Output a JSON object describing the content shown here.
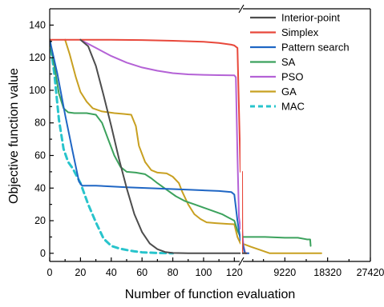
{
  "chart_data": {
    "type": "line",
    "xlabel": "Number of function evaluation",
    "ylabel": "Objective function value",
    "ylim": [
      -5,
      150
    ],
    "grid": false,
    "legend_position": "top-right",
    "x_axis": {
      "broken": true,
      "left_segment": {
        "range": [
          0,
          124
        ],
        "ticks": [
          0,
          20,
          40,
          60,
          80,
          100,
          120
        ]
      },
      "right_segment": {
        "range": [
          120,
          27420
        ],
        "ticks": [
          9220,
          18320,
          27420
        ]
      }
    },
    "y_ticks": [
      0,
      20,
      40,
      60,
      80,
      100,
      120,
      140
    ],
    "series": [
      {
        "name": "Interior-point",
        "color": "#4d4d4d",
        "dashed": false,
        "points_left": [
          [
            20,
            131
          ],
          [
            25,
            127
          ],
          [
            30,
            115
          ],
          [
            35,
            97
          ],
          [
            40,
            78
          ],
          [
            45,
            58
          ],
          [
            50,
            40
          ],
          [
            55,
            24
          ],
          [
            60,
            13
          ],
          [
            65,
            6
          ],
          [
            70,
            2.5
          ],
          [
            75,
            0.8
          ],
          [
            80,
            0.2
          ],
          [
            90,
            0
          ],
          [
            124,
            0
          ]
        ],
        "points_right": [
          [
            120,
            0
          ],
          [
            1000,
            0
          ]
        ]
      },
      {
        "name": "Simplex",
        "color": "#e8483b",
        "dashed": false,
        "points_left": [
          [
            0,
            131
          ],
          [
            20,
            131
          ],
          [
            40,
            131
          ],
          [
            60,
            130.8
          ],
          [
            80,
            130.4
          ],
          [
            100,
            129.8
          ],
          [
            110,
            129
          ],
          [
            118,
            128
          ],
          [
            120,
            127.5
          ],
          [
            122,
            126
          ],
          [
            124,
            50
          ]
        ],
        "points_right": [
          [
            120,
            50
          ],
          [
            170,
            0
          ],
          [
            300,
            0
          ],
          [
            1000,
            0
          ]
        ]
      },
      {
        "name": "Pattern search",
        "color": "#1f66c4",
        "dashed": false,
        "points_left": [
          [
            0,
            131
          ],
          [
            5,
            110
          ],
          [
            10,
            85
          ],
          [
            15,
            62
          ],
          [
            19,
            44
          ],
          [
            21,
            41.5
          ],
          [
            30,
            41.5
          ],
          [
            50,
            40.5
          ],
          [
            70,
            39.8
          ],
          [
            90,
            39
          ],
          [
            110,
            38.2
          ],
          [
            118,
            37.6
          ],
          [
            120,
            36
          ],
          [
            122,
            20
          ],
          [
            124,
            8
          ]
        ],
        "points_right": [
          [
            120,
            8
          ],
          [
            300,
            5
          ],
          [
            700,
            0
          ],
          [
            1500,
            0
          ]
        ]
      },
      {
        "name": "SA",
        "color": "#3ca25d",
        "dashed": false,
        "points_left": [
          [
            0,
            131
          ],
          [
            3,
            115
          ],
          [
            6,
            98
          ],
          [
            9,
            89
          ],
          [
            12,
            86.5
          ],
          [
            16,
            86
          ],
          [
            24,
            86
          ],
          [
            30,
            85
          ],
          [
            34,
            80
          ],
          [
            38,
            70
          ],
          [
            42,
            60
          ],
          [
            46,
            53
          ],
          [
            50,
            50
          ],
          [
            56,
            49.5
          ],
          [
            62,
            48.5
          ],
          [
            66,
            46
          ],
          [
            70,
            43
          ],
          [
            76,
            39
          ],
          [
            82,
            35
          ],
          [
            88,
            32
          ],
          [
            94,
            30
          ],
          [
            100,
            28
          ],
          [
            106,
            26
          ],
          [
            112,
            24
          ],
          [
            116,
            22
          ],
          [
            118,
            21
          ],
          [
            120,
            20
          ],
          [
            122,
            14
          ],
          [
            124,
            10
          ]
        ],
        "points_right": [
          [
            120,
            10
          ],
          [
            5000,
            10
          ],
          [
            9220,
            9.5
          ],
          [
            12000,
            9.5
          ],
          [
            14000,
            8.5
          ],
          [
            14600,
            8.5
          ],
          [
            14700,
            4.5
          ]
        ]
      },
      {
        "name": "PSO",
        "color": "#b462d6",
        "dashed": false,
        "points_left": [
          [
            20,
            131
          ],
          [
            30,
            126
          ],
          [
            40,
            121
          ],
          [
            50,
            117
          ],
          [
            60,
            114
          ],
          [
            70,
            112
          ],
          [
            80,
            110.5
          ],
          [
            90,
            109.8
          ],
          [
            100,
            109.5
          ],
          [
            110,
            109.3
          ],
          [
            120,
            109.2
          ],
          [
            121,
            108
          ],
          [
            122,
            60
          ],
          [
            123,
            22
          ],
          [
            124,
            15
          ]
        ],
        "points_right": [
          [
            120,
            15
          ],
          [
            400,
            5
          ],
          [
            800,
            0
          ],
          [
            1500,
            0
          ]
        ]
      },
      {
        "name": "GA",
        "color": "#c8a021",
        "dashed": false,
        "points_left": [
          [
            10,
            131
          ],
          [
            13,
            122
          ],
          [
            17,
            108
          ],
          [
            20,
            99
          ],
          [
            24,
            93
          ],
          [
            28,
            89
          ],
          [
            34,
            87
          ],
          [
            42,
            86
          ],
          [
            48,
            85.5
          ],
          [
            53,
            85
          ],
          [
            56,
            78
          ],
          [
            58,
            66
          ],
          [
            62,
            56
          ],
          [
            66,
            51
          ],
          [
            70,
            49.5
          ],
          [
            76,
            49
          ],
          [
            80,
            47
          ],
          [
            84,
            43
          ],
          [
            86,
            38
          ],
          [
            90,
            30
          ],
          [
            94,
            24
          ],
          [
            98,
            21
          ],
          [
            102,
            19
          ],
          [
            108,
            18.5
          ],
          [
            116,
            18
          ],
          [
            120,
            17.8
          ],
          [
            122,
            10
          ],
          [
            124,
            6
          ]
        ],
        "points_right": [
          [
            120,
            6
          ],
          [
            2000,
            4
          ],
          [
            4000,
            2
          ],
          [
            6000,
            0
          ],
          [
            17000,
            0
          ]
        ]
      },
      {
        "name": "MAC",
        "color": "#28c4cc",
        "dashed": true,
        "points_left": [
          [
            0,
            131
          ],
          [
            3,
            110
          ],
          [
            6,
            82
          ],
          [
            9,
            64
          ],
          [
            12,
            56
          ],
          [
            15,
            52
          ],
          [
            20,
            43
          ],
          [
            25,
            30
          ],
          [
            30,
            19
          ],
          [
            35,
            9
          ],
          [
            40,
            4.5
          ],
          [
            45,
            3
          ],
          [
            50,
            2
          ],
          [
            55,
            1.2
          ],
          [
            60,
            0.6
          ],
          [
            70,
            0.2
          ],
          [
            80,
            0
          ]
        ],
        "points_right": []
      }
    ]
  }
}
